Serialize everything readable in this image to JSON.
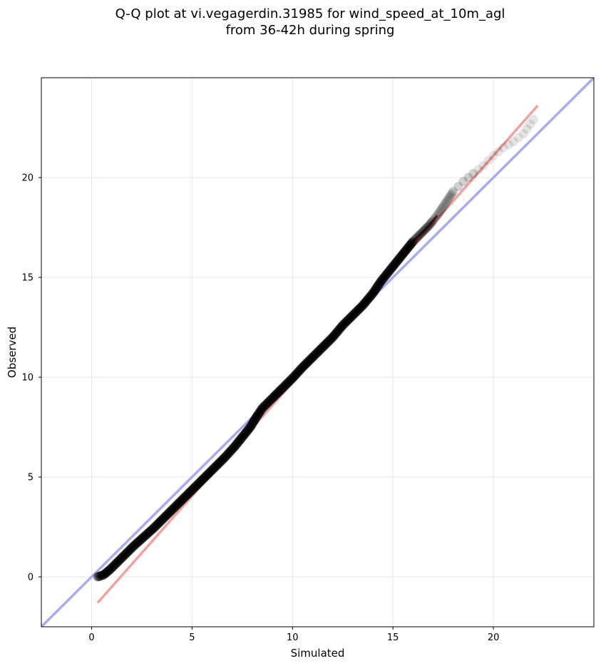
{
  "chart_data": {
    "type": "scatter",
    "title_lines": [
      "Q-Q plot at vi.vegagerdin.31985 for wind_speed_at_10m_agl",
      "from 36-42h during spring"
    ],
    "xlabel": "Simulated",
    "ylabel": "Observed",
    "xlim": [
      -2.5,
      25
    ],
    "ylim": [
      -2.5,
      25
    ],
    "xticks": [
      0,
      5,
      10,
      15,
      20
    ],
    "yticks": [
      0,
      5,
      10,
      15,
      20
    ],
    "grid": true,
    "quantile_curve": {
      "x": [
        0.3,
        0.6,
        0.9,
        1.3,
        1.7,
        2.1,
        2.6,
        3.1,
        3.6,
        4.1,
        4.6,
        5.1,
        5.6,
        6.1,
        6.6,
        7.1,
        7.5,
        7.9,
        8.2,
        8.5,
        8.7,
        9.0,
        9.5,
        10.0,
        10.5,
        11.0,
        11.5,
        12.0,
        12.5,
        13.0,
        13.5,
        14.0,
        14.4,
        14.8,
        15.2,
        15.6,
        16.0,
        16.4,
        16.8,
        17.2,
        17.6,
        18.0,
        18.5,
        19.0,
        19.5,
        20.0,
        20.5,
        21.0,
        21.5,
        22.0
      ],
      "y": [
        0.0,
        0.1,
        0.35,
        0.75,
        1.15,
        1.55,
        2.0,
        2.45,
        2.95,
        3.45,
        3.95,
        4.45,
        4.95,
        5.45,
        5.95,
        6.5,
        7.0,
        7.5,
        8.0,
        8.45,
        8.65,
        8.95,
        9.45,
        9.95,
        10.5,
        11.0,
        11.5,
        12.0,
        12.6,
        13.1,
        13.6,
        14.2,
        14.8,
        15.3,
        15.8,
        16.3,
        16.8,
        17.2,
        17.6,
        18.1,
        18.7,
        19.3,
        19.8,
        20.2,
        20.6,
        21.1,
        21.5,
        21.8,
        22.2,
        22.9
      ]
    },
    "identity_line": {
      "name": "y = x",
      "color": "#aaaaee"
    },
    "fit_line": {
      "x": [
        0.3,
        22.2
      ],
      "y": [
        -1.3,
        23.6
      ],
      "color": "#f4a0a0"
    },
    "point_color": "#000000",
    "curve_colors": [
      "#8b0000",
      "#00008b",
      "#800080"
    ]
  }
}
